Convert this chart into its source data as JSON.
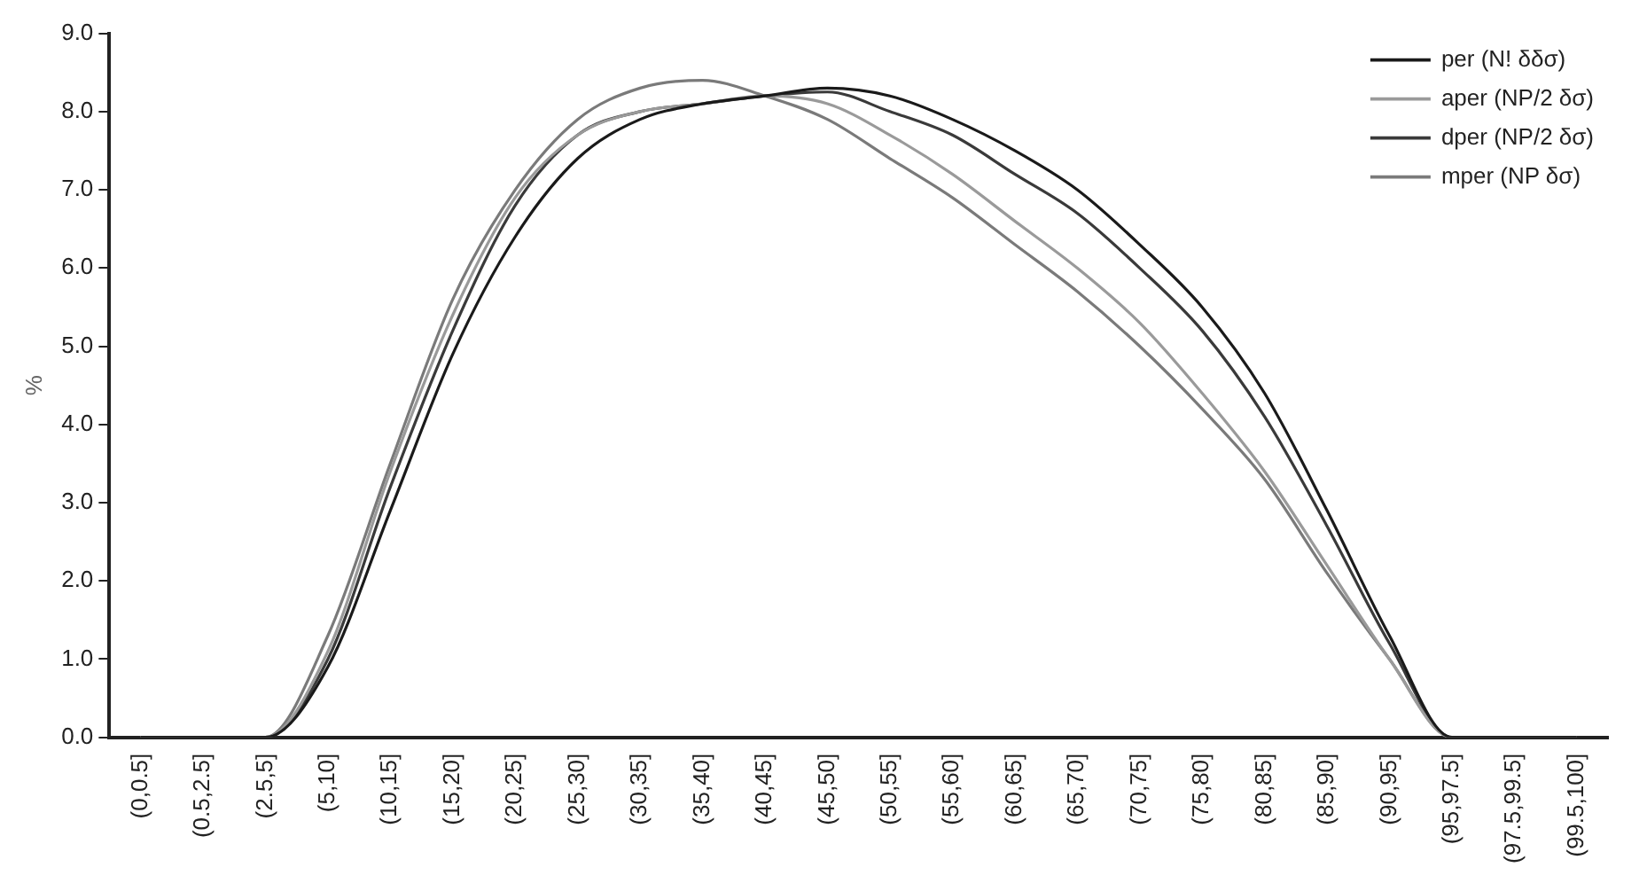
{
  "chart_data": {
    "type": "line",
    "ylabel": "%",
    "categories": [
      "(0,0.5]",
      "(0.5,2.5]",
      "(2.5,5]",
      "(5,10]",
      "(10,15]",
      "(15,20]",
      "(20,25]",
      "(25,30]",
      "(30,35]",
      "(35,40]",
      "(40,45]",
      "(45,50]",
      "(50,55]",
      "(55,60]",
      "(60,65]",
      "(65,70]",
      "(70,75]",
      "(75,80]",
      "(80,85]",
      "(85,90]",
      "(90,95]",
      "(95,97.5]",
      "(97.5,99.5]",
      "(99.5,100]"
    ],
    "series": [
      {
        "name": "per (N! δδσ)",
        "color": "#1a1a1a",
        "values": [
          0,
          0,
          0,
          0.9,
          2.9,
          4.9,
          6.4,
          7.4,
          7.9,
          8.1,
          8.2,
          8.3,
          8.2,
          7.9,
          7.5,
          7.0,
          6.3,
          5.5,
          4.4,
          2.9,
          1.3,
          0,
          0,
          0
        ]
      },
      {
        "name": "aper (NP/2 δσ)",
        "color": "#9a9a9a",
        "values": [
          0,
          0,
          0,
          1.1,
          3.4,
          5.4,
          6.9,
          7.7,
          8.0,
          8.1,
          8.2,
          8.1,
          7.7,
          7.2,
          6.6,
          6.0,
          5.3,
          4.4,
          3.4,
          2.2,
          1.0,
          0,
          0,
          0
        ]
      },
      {
        "name": "dper (NP/2 δσ)",
        "color": "#3a3a3a",
        "values": [
          0,
          0,
          0,
          1.0,
          3.2,
          5.2,
          6.8,
          7.7,
          8.0,
          8.1,
          8.2,
          8.25,
          8.0,
          7.7,
          7.2,
          6.7,
          6.0,
          5.2,
          4.1,
          2.7,
          1.2,
          0,
          0,
          0
        ]
      },
      {
        "name": "mper (NP δσ)",
        "color": "#7a7a7a",
        "values": [
          0,
          0,
          0,
          1.3,
          3.5,
          5.6,
          7.0,
          7.9,
          8.3,
          8.4,
          8.2,
          7.9,
          7.4,
          6.9,
          6.3,
          5.7,
          5.0,
          4.2,
          3.3,
          2.1,
          1.0,
          0,
          0,
          0
        ]
      }
    ],
    "ylim": [
      0,
      9
    ],
    "yticks": [
      {
        "value": 0,
        "label": "0.0"
      },
      {
        "value": 1,
        "label": "1.0"
      },
      {
        "value": 2,
        "label": "2.0"
      },
      {
        "value": 3,
        "label": "3.0"
      },
      {
        "value": 4,
        "label": "4.0"
      },
      {
        "value": 5,
        "label": "5.0"
      },
      {
        "value": 6,
        "label": "6.0"
      },
      {
        "value": 7,
        "label": "7.0"
      },
      {
        "value": 8,
        "label": "8.0"
      },
      {
        "value": 9,
        "label": "9.0"
      }
    ],
    "grid": false,
    "legend": "top right",
    "marker": "none",
    "line_style": "solid"
  }
}
